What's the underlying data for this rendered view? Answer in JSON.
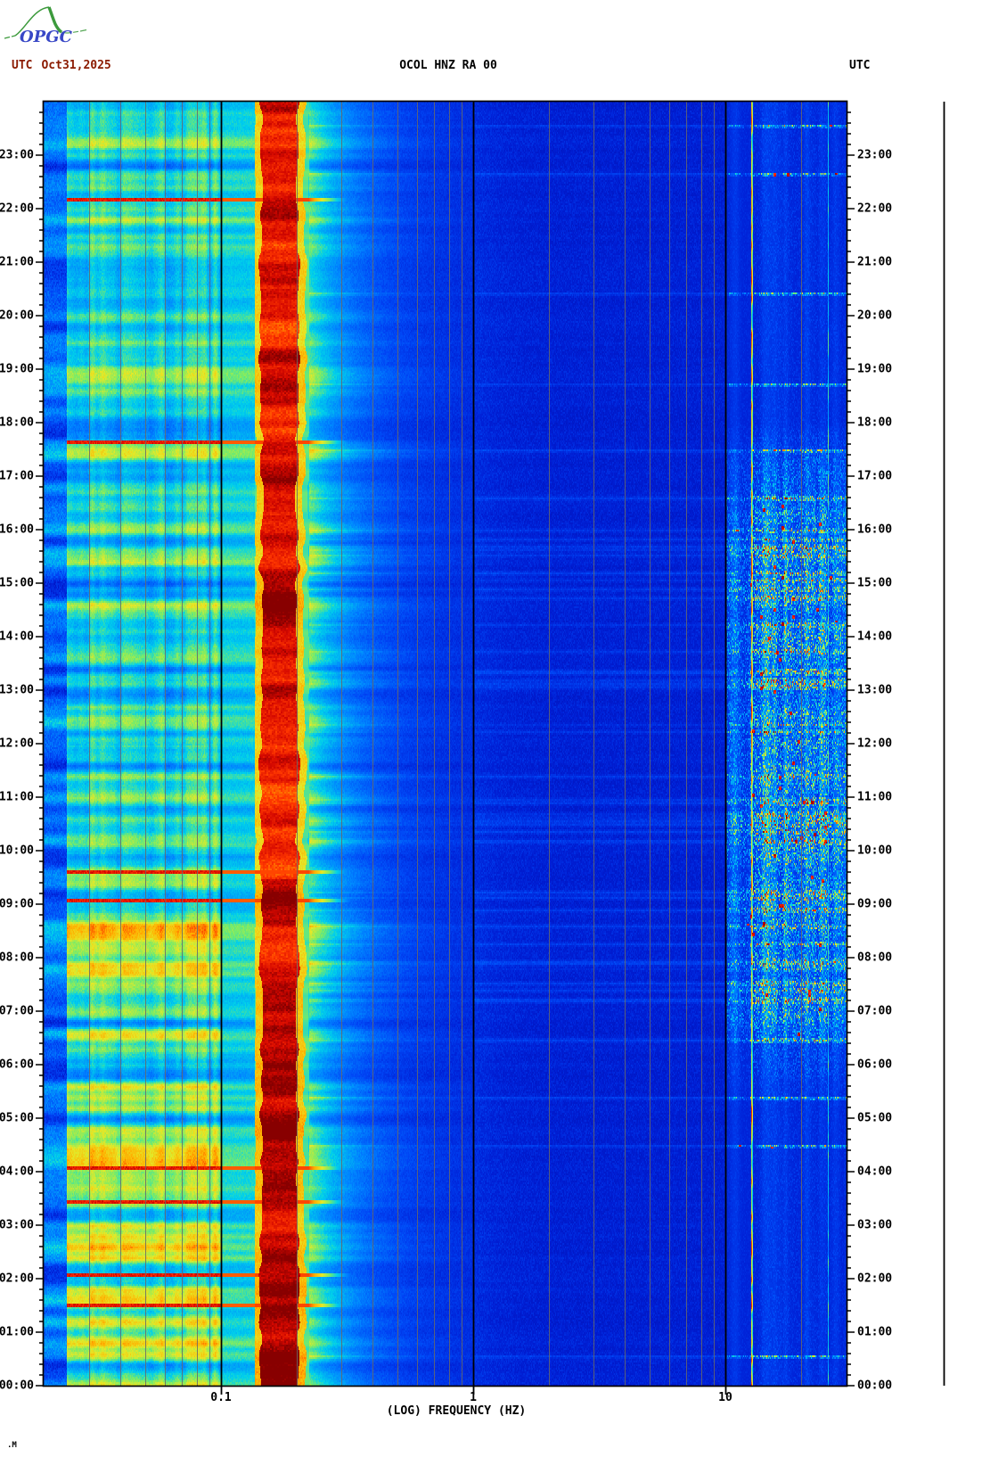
{
  "header": {
    "utc_left": "UTC",
    "date": "Oct31,2025",
    "title": "OCOL HNZ RA 00",
    "utc_right": "UTC",
    "left_text_color": "#8B1A00",
    "title_color": "#000000"
  },
  "logo": {
    "text": "OPGC",
    "curve_color": "#3C9A3C",
    "tail_color": "#58A858",
    "text_color": "#3847C6"
  },
  "axes": {
    "time_labels": [
      "23:00",
      "22:00",
      "21:00",
      "20:00",
      "19:00",
      "18:00",
      "17:00",
      "16:00",
      "15:00",
      "14:00",
      "13:00",
      "12:00",
      "11:00",
      "10:00",
      "09:00",
      "08:00",
      "07:00",
      "06:00",
      "05:00",
      "04:00",
      "03:00",
      "02:00",
      "01:00",
      "00:00"
    ],
    "minor_ticks_per_hour": 5,
    "freq": {
      "title": "(LOG) FREQUENCY (HZ)",
      "ticks": [
        {
          "label": "0.1",
          "hz": 0.1
        },
        {
          "label": "1",
          "hz": 1
        },
        {
          "label": "10",
          "hz": 10
        }
      ]
    }
  },
  "marks": {
    "bottom_left": ".M"
  },
  "chart_data": {
    "type": "heatmap",
    "subtype": "seismic_spectrogram",
    "title": "OCOL HNZ RA 00",
    "date_utc": "Oct31,2025",
    "xlabel": "(LOG) FREQUENCY (HZ)",
    "x_scale": "log10",
    "x_range_hz": [
      0.019,
      30
    ],
    "y_axis_utc": [
      "00:00",
      "24:00"
    ],
    "y_direction": "time increases upward, 00:00 at bottom",
    "gridlines_gray_hz": [
      0.03,
      0.04,
      0.05,
      0.06,
      0.07,
      0.08,
      0.09,
      0.2,
      0.3,
      0.4,
      0.5,
      0.6,
      0.7,
      0.8,
      0.9,
      2,
      3,
      4,
      5,
      6,
      7,
      8,
      9,
      20
    ],
    "gridlines_black_hz": [
      0.1,
      1,
      10
    ],
    "colormap": "jet",
    "colormap_stops": [
      [
        0.0,
        [
          0,
          10,
          165
        ]
      ],
      [
        0.1,
        [
          0,
          30,
          212
        ]
      ],
      [
        0.2,
        [
          0,
          70,
          245
        ]
      ],
      [
        0.32,
        [
          0,
          132,
          255
        ]
      ],
      [
        0.45,
        [
          0,
          208,
          235
        ]
      ],
      [
        0.55,
        [
          120,
          235,
          105
        ]
      ],
      [
        0.65,
        [
          228,
          233,
          40
        ]
      ],
      [
        0.75,
        [
          255,
          176,
          0
        ]
      ],
      [
        0.85,
        [
          255,
          56,
          0
        ]
      ],
      [
        0.93,
        [
          212,
          8,
          0
        ]
      ],
      [
        1.0,
        [
          136,
          0,
          0
        ]
      ]
    ],
    "bands": [
      {
        "name": "very-low-frequency blue column",
        "hz": [
          0.019,
          0.025
        ],
        "level": "low (blue stripes)"
      },
      {
        "name": "long-period background",
        "hz": [
          0.025,
          0.1
        ],
        "level": "medium cyan-green banding, yellow/stronger 00:00-10:00 UTC"
      },
      {
        "name": "secondary microseism peak",
        "hz": [
          0.12,
          0.2
        ],
        "level": "high orange-red, dark-red bursts 00:00-09:00 and 12:00-16:00 UTC"
      },
      {
        "name": "transition",
        "hz": [
          0.2,
          1
        ],
        "level": "cyan fading to blue"
      },
      {
        "name": "quiet band",
        "hz": [
          1,
          8
        ],
        "level": "very low, deep blue with faint speckle"
      },
      {
        "name": "high-frequency activity",
        "hz": [
          8,
          30
        ],
        "level": "speckled cyan with orange-red bursts, mainly 06:30-16:30 UTC"
      }
    ],
    "events": {
      "left_band_red_lines_utc": [
        "22:11",
        "17:40",
        "09:38",
        "09:06",
        "04:06",
        "03:29",
        "02:07",
        "01:32"
      ],
      "high_freq_active_window_utc": [
        "06:30",
        "16:30"
      ],
      "extra_streak_utc": [
        "23:35",
        "22:40",
        "20:25",
        "18:45",
        "17:30",
        "05:24",
        "04:30",
        "00:34"
      ],
      "persistent_tones_hz": [
        12.7,
        25.4
      ]
    },
    "render_seed": 12345
  }
}
